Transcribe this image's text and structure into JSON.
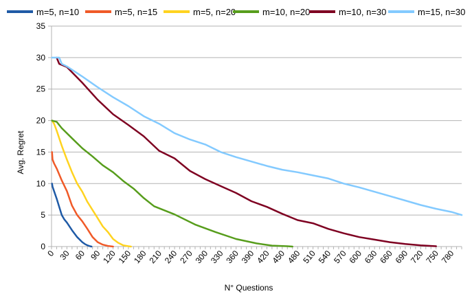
{
  "chart_data": {
    "type": "line",
    "title": "",
    "xlabel": "N° Questions",
    "ylabel": "Avg. Regret",
    "xlim": [
      0,
      800
    ],
    "ylim": [
      0,
      35
    ],
    "x_ticks": [
      "0",
      "30",
      "60",
      "90",
      "120",
      "150",
      "180",
      "210",
      "240",
      "270",
      "300",
      "330",
      "360",
      "390",
      "420",
      "450",
      "480",
      "510",
      "540",
      "570",
      "600",
      "630",
      "660",
      "690",
      "720",
      "750",
      "780"
    ],
    "y_ticks": [
      "0",
      "5",
      "10",
      "15",
      "20",
      "25",
      "30",
      "35"
    ],
    "grid": "horizontal",
    "legend_position": "top",
    "series": [
      {
        "name": "m=5, n=10",
        "color": "#1f5aa6",
        "x": [
          1,
          2,
          5,
          10,
          15,
          20,
          25,
          30,
          40,
          50,
          60,
          65,
          70,
          75,
          78
        ],
        "y": [
          10,
          9.5,
          8.8,
          7.6,
          6.3,
          5.0,
          4.3,
          3.8,
          2.6,
          1.5,
          0.7,
          0.4,
          0.2,
          0.05,
          0
        ]
      },
      {
        "name": "m=5, n=15",
        "color": "#f05a28",
        "x": [
          1,
          2,
          5,
          10,
          20,
          30,
          40,
          50,
          60,
          70,
          80,
          90,
          100,
          110,
          120
        ],
        "y": [
          15,
          13.8,
          13.2,
          12.4,
          10.5,
          8.8,
          6.5,
          5.0,
          4.0,
          2.8,
          1.5,
          0.7,
          0.3,
          0.1,
          0
        ]
      },
      {
        "name": "m=5, n=20",
        "color": "#ffd320",
        "x": [
          1,
          5,
          10,
          20,
          30,
          40,
          50,
          60,
          70,
          80,
          90,
          100,
          110,
          120,
          130,
          140,
          150,
          155
        ],
        "y": [
          20,
          19.5,
          18.4,
          16.0,
          13.8,
          11.8,
          10.0,
          8.7,
          7.1,
          5.8,
          4.5,
          3.2,
          2.3,
          1.2,
          0.6,
          0.2,
          0.05,
          0
        ]
      },
      {
        "name": "m=10, n=20",
        "color": "#579d1c",
        "x": [
          1,
          10,
          20,
          40,
          60,
          80,
          100,
          120,
          140,
          160,
          180,
          200,
          240,
          280,
          320,
          360,
          400,
          430,
          460,
          470
        ],
        "y": [
          20,
          19.8,
          18.8,
          17.2,
          15.6,
          14.3,
          12.9,
          11.8,
          10.4,
          9.2,
          7.7,
          6.4,
          5.1,
          3.5,
          2.3,
          1.2,
          0.5,
          0.15,
          0.05,
          0
        ]
      },
      {
        "name": "m=10, n=30",
        "color": "#7e0021",
        "x": [
          10,
          15,
          30,
          60,
          90,
          120,
          150,
          180,
          210,
          240,
          270,
          300,
          330,
          360,
          390,
          420,
          450,
          480,
          510,
          540,
          570,
          600,
          630,
          660,
          690,
          720,
          750
        ],
        "y": [
          30,
          29,
          28.5,
          26.0,
          23.3,
          21.0,
          19.3,
          17.5,
          15.2,
          14.0,
          12.0,
          10.7,
          9.6,
          8.5,
          7.2,
          6.3,
          5.2,
          4.2,
          3.7,
          2.8,
          2.1,
          1.5,
          1.1,
          0.7,
          0.4,
          0.2,
          0.05
        ]
      },
      {
        "name": "m=15, n=30",
        "color": "#83caff",
        "x": [
          1,
          15,
          20,
          30,
          60,
          90,
          120,
          150,
          180,
          210,
          240,
          270,
          300,
          330,
          360,
          390,
          420,
          450,
          480,
          510,
          540,
          570,
          600,
          630,
          660,
          690,
          720,
          750,
          780,
          800
        ],
        "y": [
          30,
          30,
          29,
          28.6,
          27.0,
          25.3,
          23.7,
          22.3,
          20.7,
          19.5,
          18.0,
          17.0,
          16.2,
          15.0,
          14.2,
          13.5,
          12.8,
          12.2,
          11.8,
          11.3,
          10.8,
          10.0,
          9.4,
          8.7,
          8.0,
          7.3,
          6.6,
          6.0,
          5.5,
          5.0
        ]
      }
    ]
  }
}
